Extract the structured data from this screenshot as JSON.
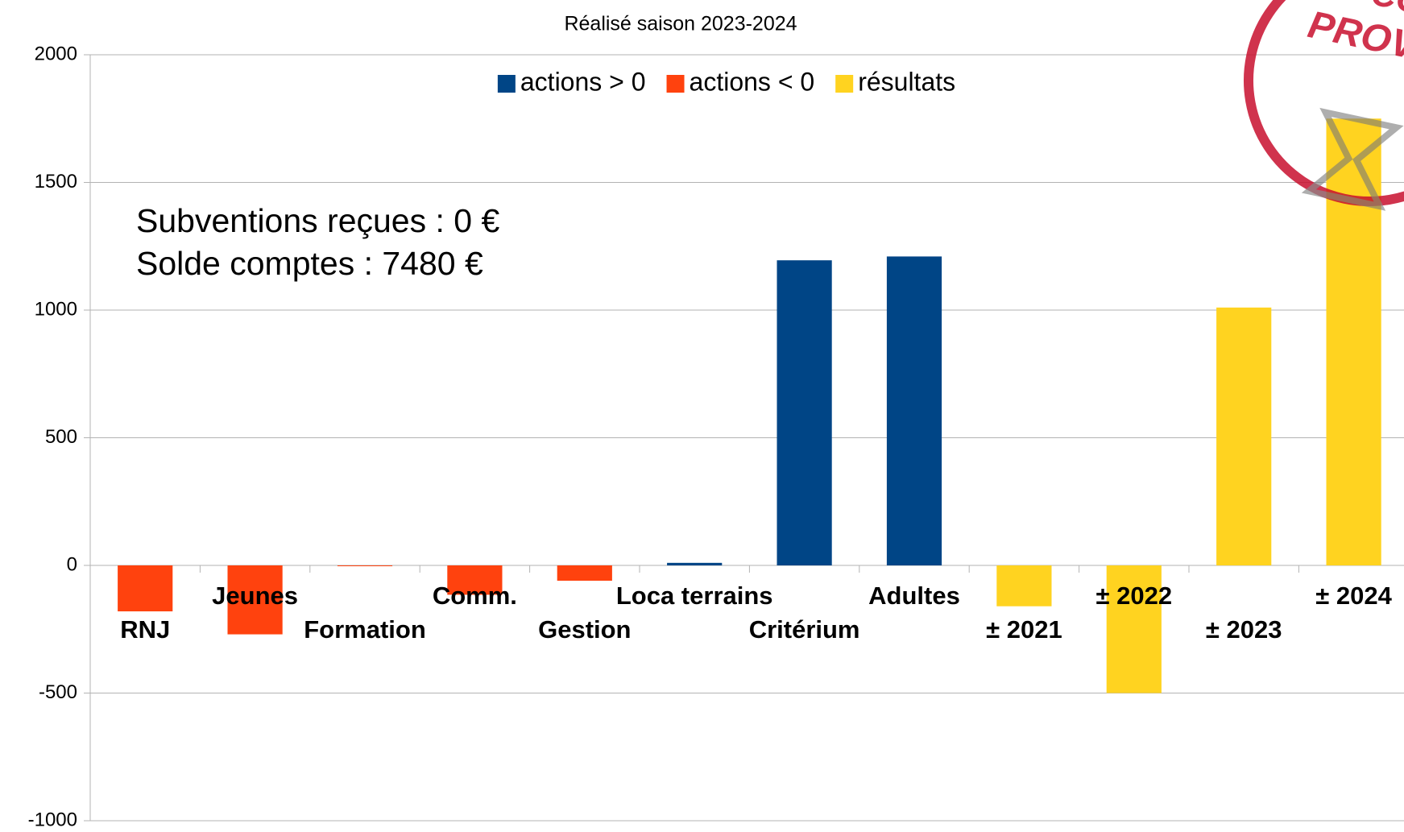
{
  "chart_data": {
    "type": "bar",
    "title": "Réalisé saison 2023-2024",
    "categories": [
      "RNJ",
      "Jeunes",
      "Formation",
      "Comm.",
      "Gestion",
      "Loca terrains",
      "Critérium",
      "Adultes",
      "± 2021",
      "± 2022",
      "± 2023",
      "± 2024"
    ],
    "series": [
      {
        "name": "actions > 0",
        "color": "#004586",
        "values": [
          null,
          null,
          null,
          null,
          null,
          10,
          1195,
          1210,
          null,
          null,
          null,
          null
        ]
      },
      {
        "name": "actions < 0",
        "color": "#ff420e",
        "values": [
          -180,
          -270,
          -3,
          -115,
          -60,
          null,
          null,
          null,
          null,
          null,
          null,
          null
        ]
      },
      {
        "name": "résultats",
        "color": "#ffd320",
        "values": [
          null,
          null,
          null,
          null,
          null,
          null,
          null,
          null,
          -160,
          -500,
          1010,
          1750
        ]
      }
    ],
    "ylim": [
      -1000,
      2000
    ],
    "yticks": [
      -1000,
      -500,
      0,
      500,
      1000,
      1500,
      2000
    ],
    "grid": true,
    "legend": "top",
    "annotations": [
      "Subventions reçues : 0 €",
      "Solde comptes : 7480 €"
    ],
    "stamp": [
      "CO",
      "PROVIS"
    ]
  }
}
